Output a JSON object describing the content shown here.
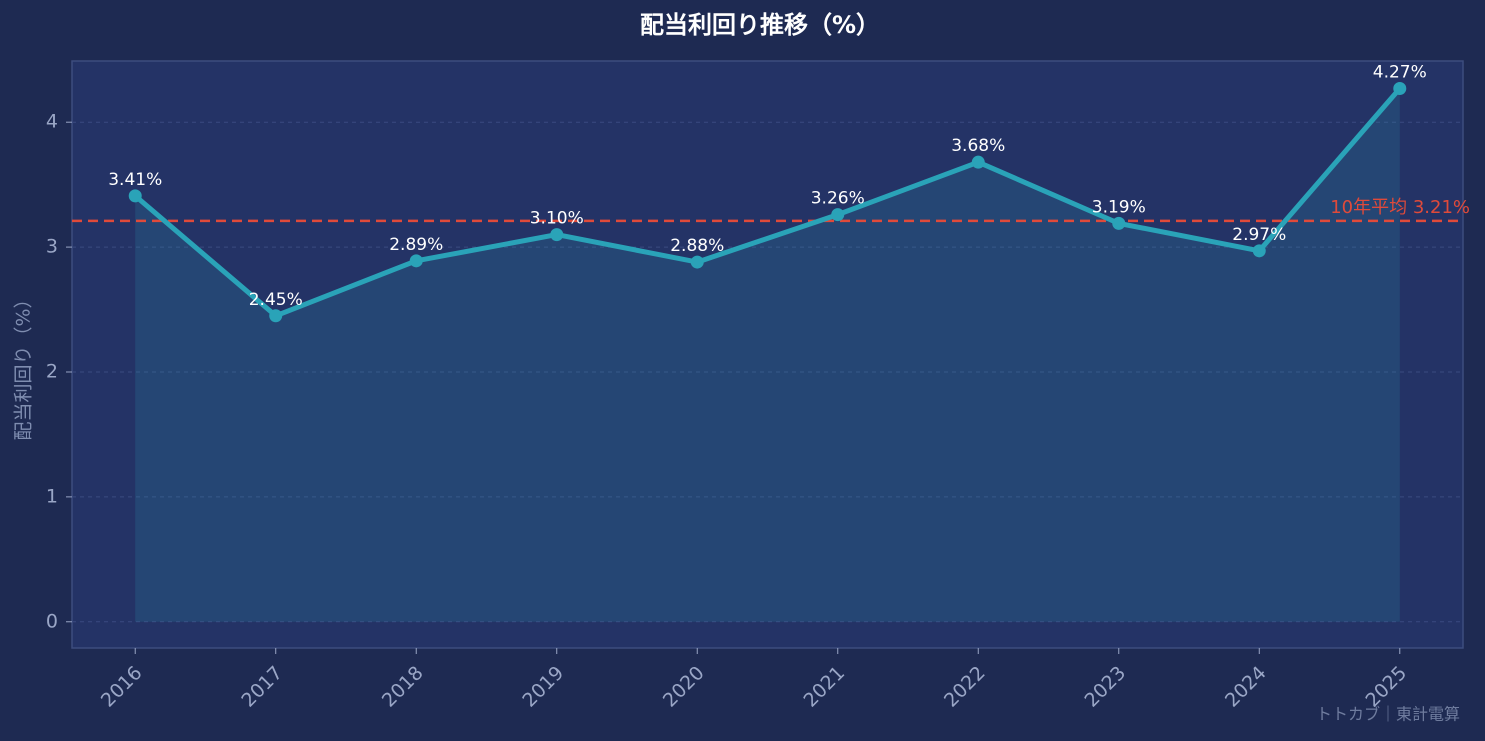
{
  "chart_data": {
    "type": "line",
    "title": "配当利回り推移（%）",
    "y_label": "配当利回り（%）",
    "categories": [
      "2016",
      "2017",
      "2018",
      "2019",
      "2020",
      "2021",
      "2022",
      "2023",
      "2024",
      "2025"
    ],
    "values": [
      3.41,
      2.45,
      2.89,
      3.1,
      2.88,
      3.26,
      3.68,
      3.19,
      2.97,
      4.27
    ],
    "value_labels": [
      "3.41%",
      "2.45%",
      "2.89%",
      "3.10%",
      "2.88%",
      "3.26%",
      "3.68%",
      "3.19%",
      "2.97%",
      "4.27%"
    ],
    "color": "#2aa3b8",
    "average": {
      "value": 3.21,
      "label": "10年平均 3.21%",
      "color": "#e04a3a"
    },
    "ylim": [
      -0.21,
      4.49
    ],
    "yticks": [
      0,
      1,
      2,
      3,
      4
    ],
    "grid": true,
    "watermark": "トトカブ｜東計電算"
  }
}
